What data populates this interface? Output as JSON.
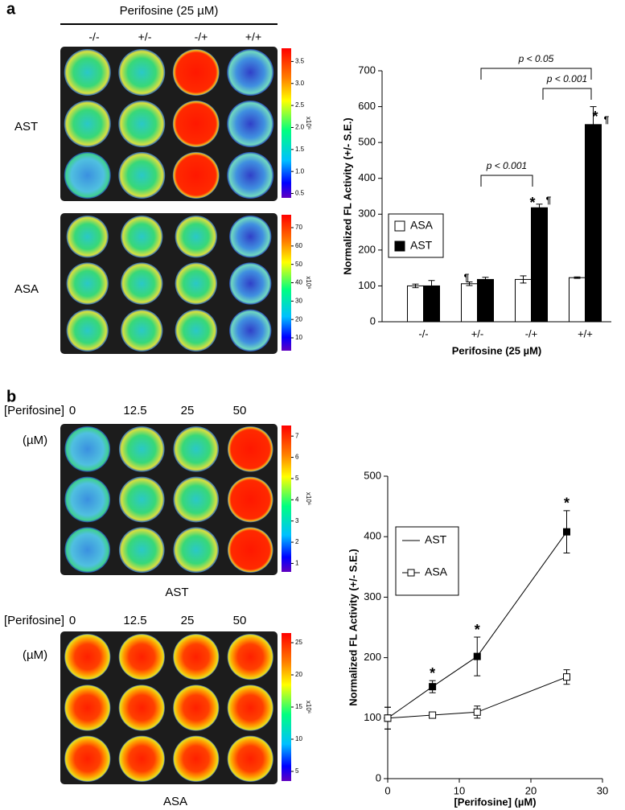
{
  "figure": {
    "panel_labels": [
      "a",
      "b"
    ],
    "a_header": "Perifosine (25 µM)",
    "a_columns": [
      "-/-",
      "+/-",
      "-/+",
      "+/+"
    ],
    "plates": [
      {
        "label": "AST",
        "colorbar": {
          "lim": [
            0.4,
            3.8
          ],
          "unit": "x10⁶",
          "ticks": [
            3.5,
            {
              "value": 3,
              "label": "3.0"
            },
            2.5,
            {
              "value": 2,
              "label": "2.0"
            },
            1.5,
            {
              "value": 1,
              "label": "1.0"
            },
            0.5
          ]
        }
      },
      {
        "label": "ASA",
        "colorbar": {
          "lim": [
            3,
            77
          ],
          "unit": "x10⁶",
          "ticks": [
            70,
            60,
            50,
            40,
            30,
            20,
            10
          ]
        }
      },
      {
        "label": "AST",
        "header": "[Perifosine]",
        "unit_label": "(µM)",
        "columns": [
          "0",
          "12.5",
          "25",
          "50"
        ],
        "colorbar": {
          "lim": [
            0.6,
            7.5
          ],
          "unit": "x10⁶",
          "ticks": [
            7,
            6,
            5,
            4,
            3,
            2,
            1
          ]
        }
      },
      {
        "label": "ASA",
        "header": "[Perifosine]",
        "unit_label": "(µM)",
        "columns": [
          "0",
          "12.5",
          "25",
          "50"
        ],
        "colorbar": {
          "lim": [
            3.5,
            26.5
          ],
          "unit": "x10⁶",
          "ticks": [
            25,
            20,
            15,
            10,
            5
          ]
        }
      }
    ]
  },
  "chart_data": [
    {
      "type": "bar",
      "ylabel": "Normalized FL Activity (+/- S.E.)",
      "xlabel": "Perifosine (25 µM)",
      "categories": [
        "-/-",
        "+/-",
        "-/+",
        "+/+"
      ],
      "series": [
        {
          "name": "ASA",
          "color": "#ffffff",
          "values": [
            100,
            106,
            118,
            123
          ],
          "errors": [
            5,
            5,
            10,
            2
          ]
        },
        {
          "name": "AST",
          "color": "#000000",
          "values": [
            100,
            118,
            318,
            550
          ],
          "errors": [
            15,
            6,
            10,
            50
          ]
        }
      ],
      "ylim": [
        0,
        700
      ],
      "yticks": [
        0,
        100,
        200,
        300,
        400,
        500,
        600,
        700
      ],
      "legend": "left",
      "annotations": [
        "¶",
        "*",
        "¶",
        "*",
        "¶"
      ],
      "brackets": [
        "p < 0.001",
        "p < 0.05",
        "p < 0.001"
      ]
    },
    {
      "type": "line",
      "ylabel": "Normalized FL Activity (+/- S.E.)",
      "xlabel": "[Perifosine] (µM)",
      "series": [
        {
          "name": "AST",
          "color": "#000000",
          "marker": "filled",
          "x": [
            0,
            6.25,
            12.5,
            25
          ],
          "values": [
            100,
            152,
            202,
            408
          ],
          "errors": [
            18,
            10,
            32,
            35
          ]
        },
        {
          "name": "ASA",
          "color": "#000000",
          "marker": "open",
          "x": [
            0,
            6.25,
            12.5,
            25
          ],
          "values": [
            100,
            105,
            110,
            168
          ],
          "errors": [
            18,
            4,
            10,
            12
          ]
        }
      ],
      "xlim": [
        0,
        30
      ],
      "xticks": [
        0,
        10,
        20,
        30
      ],
      "ylim": [
        0,
        500
      ],
      "yticks": [
        0,
        100,
        200,
        300,
        400,
        500
      ],
      "legend": "left",
      "annotations": [
        "*",
        "*",
        "*"
      ]
    }
  ]
}
